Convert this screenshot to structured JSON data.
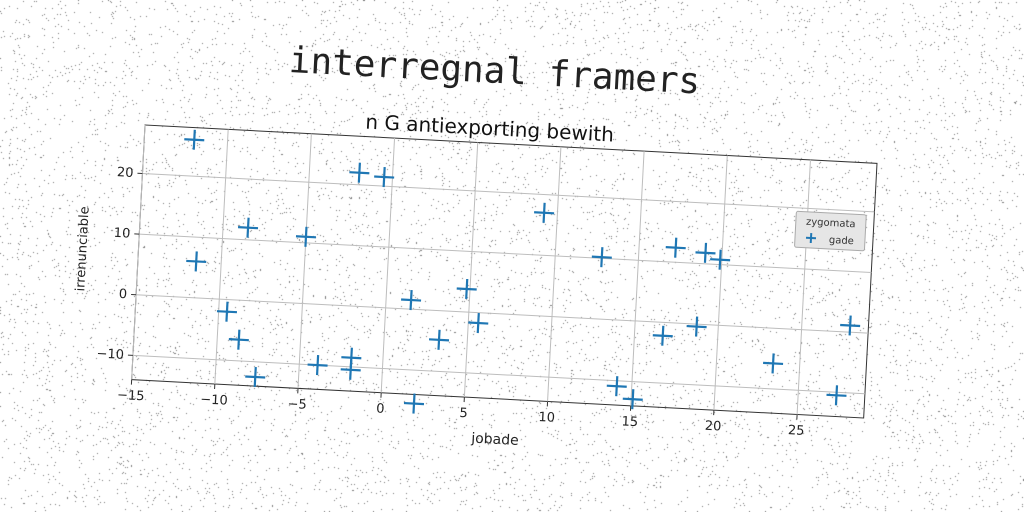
{
  "suptitle": "interregnal framers",
  "chart_data": {
    "type": "scatter",
    "title": "n G antiexporting bewith",
    "xlabel": "jobade",
    "ylabel": "irrenunciable",
    "xlim": [
      -15,
      29
    ],
    "ylim": [
      -14,
      28
    ],
    "xticks": [
      -15,
      -10,
      -5,
      0,
      5,
      10,
      15,
      20,
      25
    ],
    "yticks": [
      -10,
      0,
      10,
      20
    ],
    "grid": true,
    "legend": {
      "title": "zygomata",
      "placement": "top-right"
    },
    "series": [
      {
        "name": "gade",
        "color": "#1f77b4",
        "marker": "+",
        "points": [
          [
            -12,
            26
          ],
          [
            -11.5,
            6
          ],
          [
            -8.5,
            12
          ],
          [
            -5,
            11
          ],
          [
            -2,
            22
          ],
          [
            -0.5,
            21.5
          ],
          [
            -9.5,
            -2
          ],
          [
            -8.7,
            -6.5
          ],
          [
            -7.6,
            -12.5
          ],
          [
            -3.9,
            -10
          ],
          [
            -1.9,
            -8.5
          ],
          [
            -1.9,
            -10.5
          ],
          [
            1.5,
            1.5
          ],
          [
            2,
            -15.5
          ],
          [
            3.3,
            -4.8
          ],
          [
            4.8,
            3.8
          ],
          [
            5.6,
            -1.7
          ],
          [
            9.2,
            17
          ],
          [
            12.8,
            10.2
          ],
          [
            14.1,
            -10.9
          ],
          [
            15.1,
            -12.9
          ],
          [
            16.7,
            -2.2
          ],
          [
            17.2,
            12.4
          ],
          [
            18.7,
            -0.4
          ],
          [
            19,
            11.8
          ],
          [
            19.9,
            10.8
          ],
          [
            23.4,
            -5.8
          ],
          [
            27.3,
            -10.5
          ],
          [
            27.9,
            1.1
          ]
        ]
      }
    ]
  }
}
